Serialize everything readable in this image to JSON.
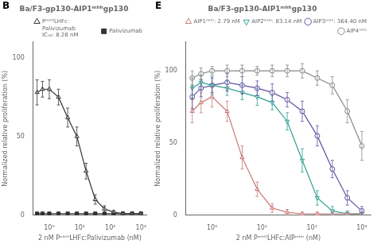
{
  "chart_data": [
    {
      "type": "line",
      "annotations": [
        "B"
      ],
      "title": "Ba/F3-gp130-AIP1ᵐʰʰgp130",
      "xlabel": "2 nM PᵐʰᴼLHFc:Palivizumab (nM)",
      "ylabel": "Normalized relative proliferation (%)",
      "log": "x",
      "xlim": [
        0.3,
        1500
      ],
      "xticks": [
        {
          "value": 1,
          "label": "10⁰"
        },
        {
          "value": 10,
          "label": "10¹"
        },
        {
          "value": 100,
          "label": "10²"
        },
        {
          "value": 1000,
          "label": "10³"
        }
      ],
      "ylim": [
        0,
        110
      ],
      "yticks": [
        0,
        50,
        100
      ],
      "grid": false,
      "legend": "upper right",
      "x": [
        0.4,
        0.6,
        1.0,
        2.0,
        4.0,
        8.0,
        16.0,
        32.0,
        64.0,
        128.0,
        256.0,
        512.0,
        1000.0
      ],
      "series": [
        {
          "name": "PᵐʰᴼLHFc:\nPalivizumab\nIC₅₀: 8.28 nM",
          "color": "#333333",
          "marker": "triangle-open",
          "line_style": "solid",
          "values": [
            78,
            80,
            80,
            75,
            62,
            50,
            28,
            10,
            4,
            2,
            1,
            1,
            1
          ],
          "err": [
            8,
            5,
            6,
            5,
            6,
            6,
            5,
            3,
            2,
            1,
            1,
            1,
            1
          ]
        },
        {
          "name": "Palivizumab",
          "color": "#333333",
          "marker": "square",
          "line_style": "solid",
          "values": [
            1,
            1,
            1,
            1,
            1,
            1,
            1,
            1,
            1,
            1,
            1,
            1,
            1
          ],
          "err": [
            0.5,
            0.5,
            0.5,
            0.5,
            0.5,
            0.5,
            0.5,
            0.5,
            0.5,
            0.5,
            0.5,
            0.5,
            0.5
          ]
        }
      ]
    },
    {
      "type": "line",
      "annotations": [
        "E"
      ],
      "title": "Ba/F3-gp130-AIP1ᵐʰʰgp130",
      "xlabel": "2 nM PᵐʰᴼLHFc:AIPᵐʰʰ (nM)",
      "ylabel": "Normalized relative proliferation (%)",
      "log": "x",
      "xlim": [
        0.3,
        1500
      ],
      "xticks": [
        {
          "value": 1,
          "label": "10⁰"
        },
        {
          "value": 10,
          "label": "10¹"
        },
        {
          "value": 100,
          "label": "10²"
        },
        {
          "value": 1000,
          "label": "10³"
        }
      ],
      "ylim": [
        0,
        120
      ],
      "yticks": [
        0,
        50,
        100
      ],
      "grid": false,
      "legend": "upper right",
      "x": [
        0.4,
        0.6,
        1.0,
        2.0,
        4.0,
        8.0,
        16.0,
        32.0,
        64.0,
        128.0,
        256.0,
        512.0,
        1000.0
      ],
      "series": [
        {
          "name": "AIP1ᵐʰʰ: 2.79 nM",
          "color": "#c87878",
          "marker": "triangle-open",
          "line_style": "solid",
          "values": [
            72,
            78,
            82,
            72,
            40,
            18,
            5,
            2,
            1,
            1,
            1,
            1,
            1
          ],
          "err": [
            8,
            7,
            7,
            7,
            8,
            5,
            3,
            2,
            1,
            1,
            1,
            1,
            1
          ]
        },
        {
          "name": "AIP2ᵐʰʰ: 83.14 nM",
          "color": "#30a090",
          "marker": "triangle-down-open",
          "line_style": "solid",
          "values": [
            88,
            92,
            90,
            88,
            85,
            82,
            78,
            65,
            38,
            12,
            3,
            1,
            1
          ],
          "err": [
            7,
            5,
            6,
            5,
            5,
            6,
            5,
            6,
            8,
            5,
            3,
            2,
            1
          ]
        },
        {
          "name": "AIP3ᵐʰʰ: 364.40 nM",
          "color": "#6050a0",
          "marker": "circle-open",
          "line_style": "solid",
          "values": [
            82,
            88,
            90,
            92,
            90,
            88,
            85,
            80,
            72,
            55,
            32,
            12,
            3
          ],
          "err": [
            8,
            6,
            5,
            6,
            6,
            5,
            6,
            5,
            7,
            7,
            6,
            5,
            3
          ]
        },
        {
          "name": "AIP4ᵐʰʰ",
          "color": "#888888",
          "marker": "circle-open",
          "line_style": "solid",
          "values": [
            95,
            98,
            100,
            100,
            100,
            100,
            100,
            100,
            100,
            95,
            90,
            72,
            48
          ],
          "err": [
            5,
            4,
            3,
            4,
            4,
            3,
            4,
            4,
            5,
            5,
            6,
            8,
            10
          ]
        }
      ]
    }
  ]
}
